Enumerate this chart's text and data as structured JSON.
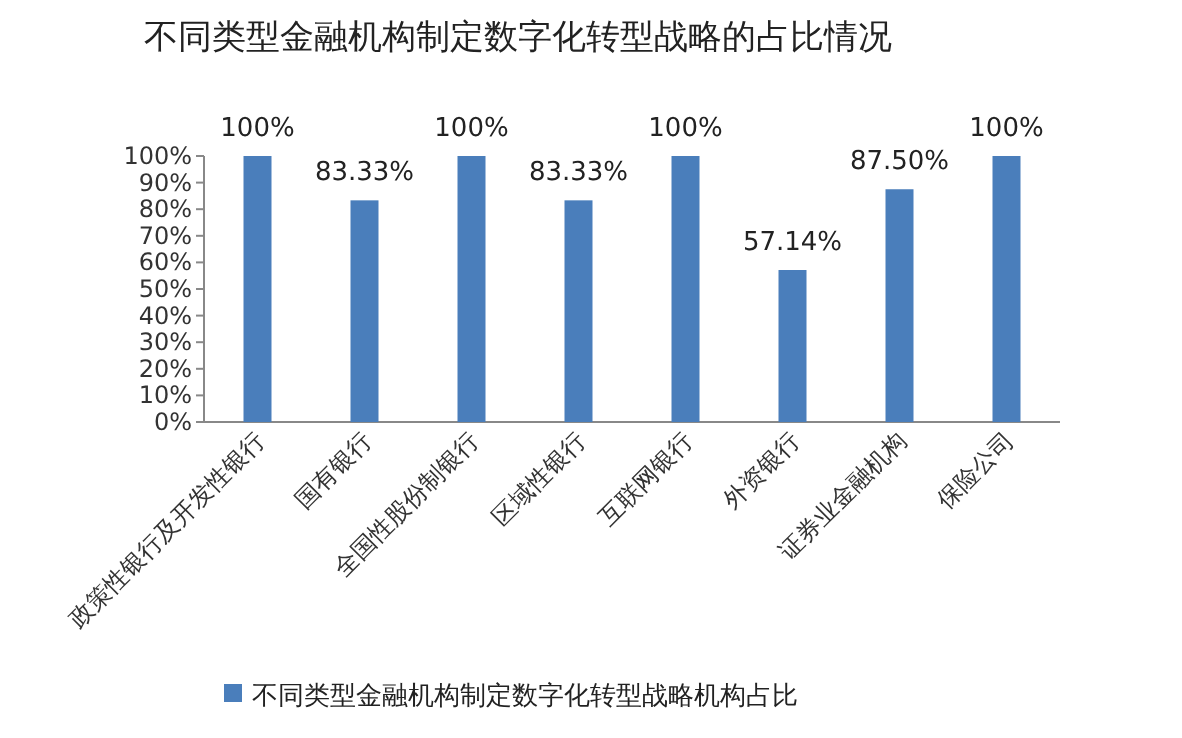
{
  "chart_data": {
    "type": "bar",
    "title": "不同类型金融机构制定数字化转型战略的占比情况",
    "categories": [
      "政策性银行及开发性银行",
      "国有银行",
      "全国性股份制银行",
      "区域性银行",
      "互联网银行",
      "外资银行",
      "证券业金融机构",
      "保险公司"
    ],
    "series": [
      {
        "name": "不同类型金融机构制定数字化转型战略机构占比",
        "color": "#4a7ebb",
        "values": [
          100,
          83.33,
          100,
          83.33,
          100,
          57.14,
          87.5,
          100
        ],
        "value_labels": [
          "100%",
          "83.33%",
          "100%",
          "83.33%",
          "100%",
          "57.14%",
          "87.50%",
          "100%"
        ]
      }
    ],
    "ylim": [
      0,
      100
    ],
    "yticks": [
      {
        "value": 0,
        "label": "0%"
      },
      {
        "value": 10,
        "label": "10%"
      },
      {
        "value": 20,
        "label": "20%"
      },
      {
        "value": 30,
        "label": "30%"
      },
      {
        "value": 40,
        "label": "40%"
      },
      {
        "value": 50,
        "label": "50%"
      },
      {
        "value": 60,
        "label": "60%"
      },
      {
        "value": 70,
        "label": "70%"
      },
      {
        "value": 80,
        "label": "80%"
      },
      {
        "value": 90,
        "label": "90%"
      },
      {
        "value": 100,
        "label": "100%"
      }
    ],
    "legend": "bottom"
  }
}
